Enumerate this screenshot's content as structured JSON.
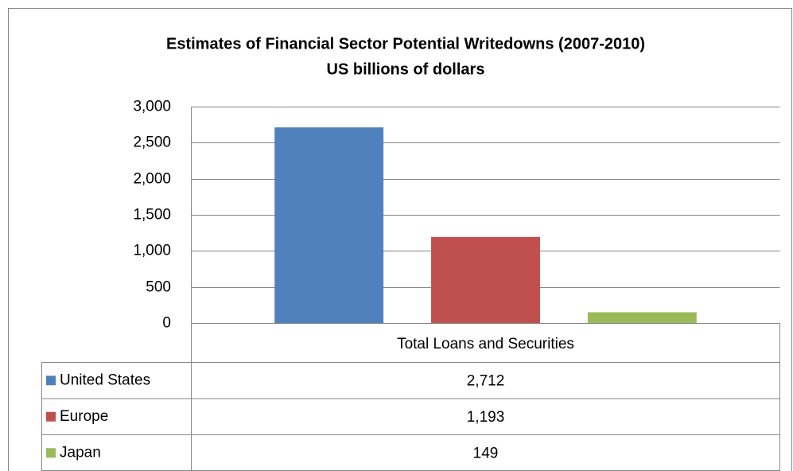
{
  "chart_data": {
    "type": "bar",
    "title": "Estimates of Financial Sector Potential Writedowns (2007-2010)",
    "subtitle": "US billions of dollars",
    "categories": [
      "Total Loans and Securities"
    ],
    "series": [
      {
        "name": "United States",
        "color": "#4f81bd",
        "values": [
          2712
        ],
        "value_labels": [
          "2,712"
        ]
      },
      {
        "name": "Europe",
        "color": "#c0504d",
        "values": [
          1193
        ],
        "value_labels": [
          "1,193"
        ]
      },
      {
        "name": "Japan",
        "color": "#9bbb59",
        "values": [
          149
        ],
        "value_labels": [
          "149"
        ]
      }
    ],
    "ylim": [
      0,
      3000
    ],
    "yticks": [
      0,
      500,
      {
        "value": 1000,
        "label": "1,000"
      },
      {
        "value": 1500,
        "label": "1,500"
      },
      {
        "value": 2000,
        "label": "2,000"
      },
      {
        "value": 2500,
        "label": "2,500"
      },
      {
        "value": 3000,
        "label": "3,000"
      }
    ],
    "grid": true
  }
}
